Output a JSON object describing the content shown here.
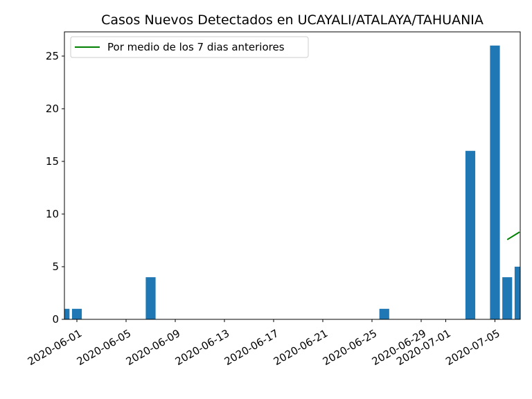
{
  "chart_data": {
    "type": "bar",
    "title": "Casos Nuevos Detectados en UCAYALI/ATALAYA/TAHUANIA",
    "xlabel": "",
    "ylabel": "",
    "x_tick_labels": [
      "2020-06-01",
      "2020-06-05",
      "2020-06-09",
      "2020-06-13",
      "2020-06-17",
      "2020-06-21",
      "2020-06-25",
      "2020-06-29",
      "2020-07-01",
      "2020-07-05"
    ],
    "y_tick_labels": [
      "0",
      "5",
      "10",
      "15",
      "20",
      "25"
    ],
    "ylim": [
      0,
      27.3
    ],
    "x_range": [
      "2020-05-31",
      "2020-07-07"
    ],
    "bar_color": "#1f77b4",
    "bars": [
      {
        "date": "2020-05-31",
        "value": 1
      },
      {
        "date": "2020-06-01",
        "value": 1
      },
      {
        "date": "2020-06-07",
        "value": 4
      },
      {
        "date": "2020-06-26",
        "value": 1
      },
      {
        "date": "2020-07-03",
        "value": 16
      },
      {
        "date": "2020-07-05",
        "value": 26
      },
      {
        "date": "2020-07-06",
        "value": 4
      },
      {
        "date": "2020-07-07",
        "value": 5
      }
    ],
    "line_series": {
      "name": "Por medio de los 7 dias anteriores",
      "color": "#008000",
      "points": [
        {
          "date": "2020-07-06",
          "value": 7.57
        },
        {
          "date": "2020-07-07",
          "value": 8.29
        }
      ]
    },
    "legend_position": "upper-left",
    "grid": false
  }
}
